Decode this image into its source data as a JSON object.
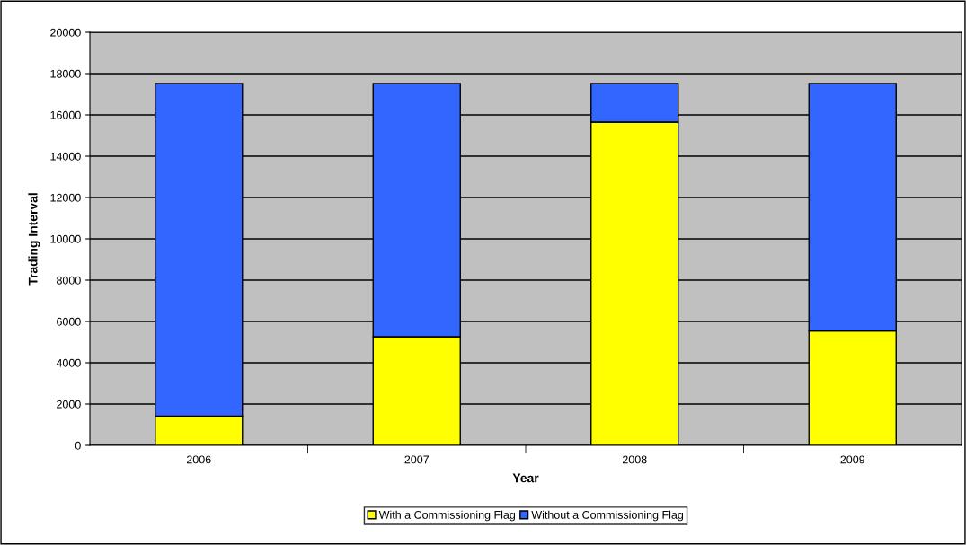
{
  "chart_data": {
    "type": "bar",
    "stacked": true,
    "xlabel": "Year",
    "ylabel": "Trading Interval",
    "categories": [
      "2006",
      "2007",
      "2008",
      "2009"
    ],
    "series": [
      {
        "name": "With a Commissioning Flag",
        "color": "#ffff00",
        "values": [
          1420,
          5260,
          15650,
          5540
        ]
      },
      {
        "name": "Without a Commissioning Flag",
        "color": "#3366ff",
        "values": [
          16100,
          12260,
          1870,
          11980
        ]
      }
    ],
    "ylim": [
      0,
      20000
    ],
    "yticks": [
      0,
      2000,
      4000,
      6000,
      8000,
      10000,
      12000,
      14000,
      16000,
      18000,
      20000
    ],
    "grid": "y",
    "legend": "bottom"
  }
}
